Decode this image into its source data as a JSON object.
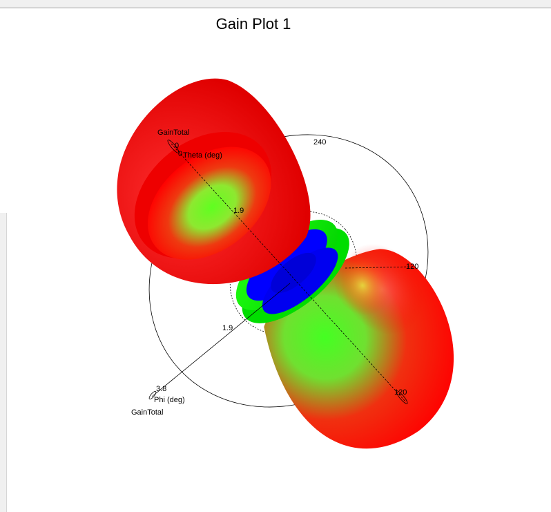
{
  "window": {
    "title": "Gain Plot 1"
  },
  "chart_data": {
    "type": "3d-radiation-pattern",
    "title": "Gain Plot 1",
    "quantity": "GainTotal",
    "colors": {
      "low": "#0000ff",
      "mid": "#00ff00",
      "high": "#ff0000"
    },
    "theta_axis": {
      "label": "Theta (deg)",
      "ticks": [
        "0",
        "120"
      ]
    },
    "phi_axis": {
      "label": "Phi (deg)",
      "ticks": [
        "240",
        "120"
      ]
    },
    "gain_axis_1": {
      "label": "GainTotal",
      "ticks": [
        "0",
        "1.9",
        "3.8"
      ]
    },
    "gain_axis_2": {
      "label": "GainTotal",
      "ticks": [
        "1.9",
        "3.8"
      ]
    }
  }
}
